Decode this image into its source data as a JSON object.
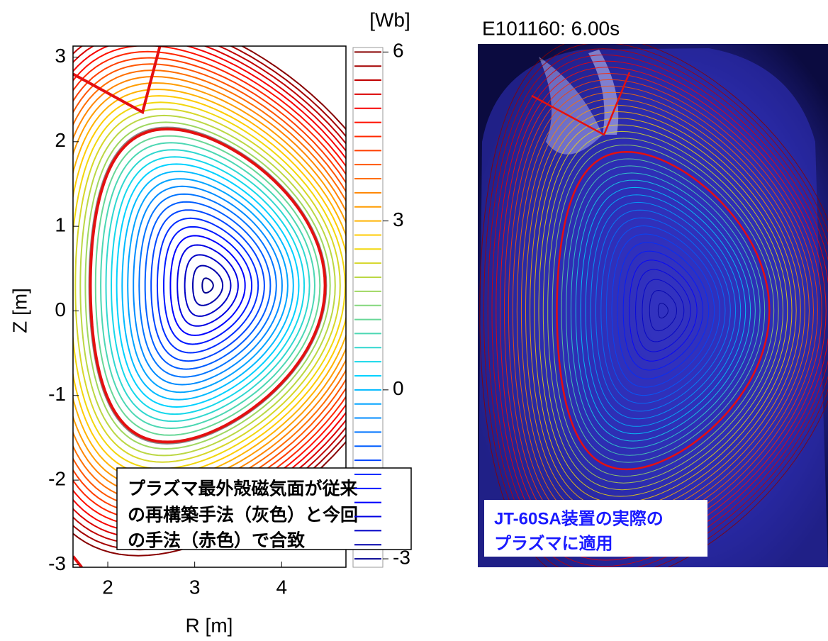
{
  "chart_data": {
    "type": "contour",
    "xlabel": "R [m]",
    "ylabel": "Z [m]",
    "xlim": [
      1.6,
      4.74
    ],
    "ylim": [
      -3.03,
      3.13
    ],
    "xticks": [
      2,
      3,
      4
    ],
    "yticks": [
      -3,
      -2,
      -1,
      0,
      1,
      2,
      3
    ],
    "colormap": "jet",
    "colorbar": {
      "label": "[Wb]",
      "lim": [
        -3.15,
        6.08
      ],
      "ticks": [
        -3,
        0,
        3,
        6
      ]
    },
    "levels": [
      -3,
      -2.75,
      -2.5,
      -2.25,
      -2,
      -1.75,
      -1.5,
      -1.25,
      -1,
      -0.75,
      -0.5,
      -0.25,
      0,
      0.25,
      0.5,
      0.75,
      1,
      1.25,
      1.5,
      1.75,
      2,
      2.25,
      2.5,
      2.75,
      3,
      3.25,
      3.5,
      3.75,
      4,
      4.25,
      4.5,
      4.75,
      5,
      5.25,
      5.5,
      5.75,
      6
    ],
    "annotation": [
      "プラズマ最外殻磁気面が従来",
      "の再構築手法（灰色）と今回",
      "の手法（赤色）で合致"
    ]
  },
  "photo": {
    "title": "E101160: 6.00s",
    "caption": [
      "JT-60SA装置の実際の",
      "プラズマに適用"
    ]
  }
}
